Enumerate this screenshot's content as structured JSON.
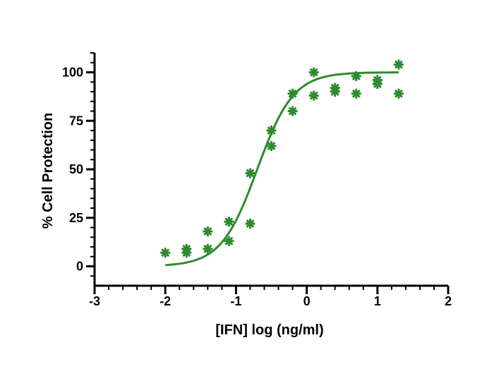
{
  "chart_data": {
    "type": "scatter",
    "title": "",
    "xlabel": "[IFN] log (ng/ml)",
    "ylabel": "% Cell Protection",
    "xlim": [
      -3,
      2
    ],
    "ylim": [
      -10,
      110
    ],
    "xticks": [
      -3,
      -2,
      -1,
      0,
      1,
      2
    ],
    "yticks": [
      0,
      25,
      50,
      75,
      100
    ],
    "grid": false,
    "colors": {
      "series": "#2e8b2e",
      "axis": "#000000"
    },
    "points": [
      {
        "x": -2.0,
        "y": 7
      },
      {
        "x": -1.7,
        "y": 7
      },
      {
        "x": -1.7,
        "y": 9
      },
      {
        "x": -1.4,
        "y": 18
      },
      {
        "x": -1.4,
        "y": 9
      },
      {
        "x": -1.1,
        "y": 23
      },
      {
        "x": -1.1,
        "y": 13
      },
      {
        "x": -0.8,
        "y": 48
      },
      {
        "x": -0.8,
        "y": 22
      },
      {
        "x": -0.5,
        "y": 70
      },
      {
        "x": -0.5,
        "y": 62
      },
      {
        "x": -0.2,
        "y": 89
      },
      {
        "x": -0.2,
        "y": 80
      },
      {
        "x": 0.1,
        "y": 100
      },
      {
        "x": 0.1,
        "y": 88
      },
      {
        "x": 0.4,
        "y": 92
      },
      {
        "x": 0.4,
        "y": 90
      },
      {
        "x": 0.7,
        "y": 98
      },
      {
        "x": 0.7,
        "y": 89
      },
      {
        "x": 1.0,
        "y": 96
      },
      {
        "x": 1.0,
        "y": 94
      },
      {
        "x": 1.3,
        "y": 104
      },
      {
        "x": 1.3,
        "y": 89
      }
    ],
    "fit": {
      "model": "four-parameter logistic",
      "bottom": 0,
      "top": 100,
      "logEC50": -0.7,
      "hillslope": 1.7,
      "x_range": [
        -2.0,
        1.3
      ]
    }
  }
}
